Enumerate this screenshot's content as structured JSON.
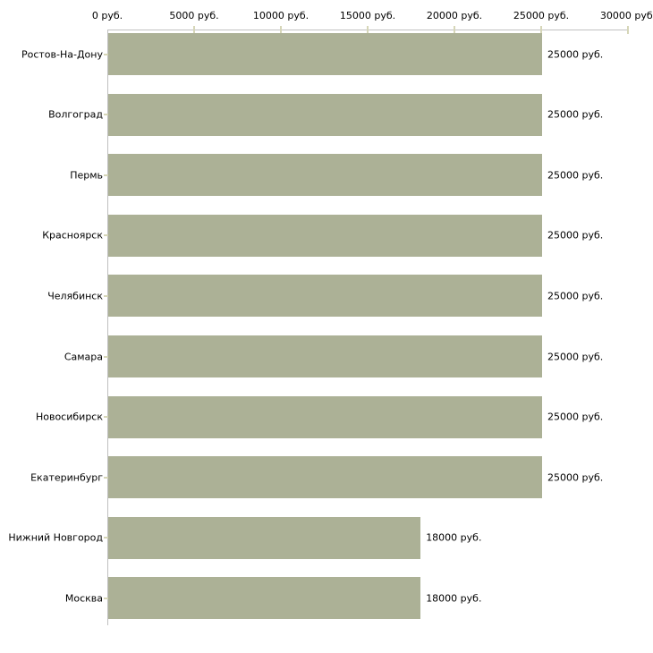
{
  "chart_data": {
    "type": "bar",
    "orientation": "horizontal",
    "title": "",
    "xlabel": "",
    "ylabel": "",
    "categories": [
      "Ростов-На-Дону",
      "Волгоград",
      "Пермь",
      "Красноярск",
      "Челябинск",
      "Самара",
      "Новосибирск",
      "Екатеринбург",
      "Нижний Новгород",
      "Москва"
    ],
    "values": [
      25000,
      25000,
      25000,
      25000,
      25000,
      25000,
      25000,
      25000,
      18000,
      18000
    ],
    "value_labels": [
      "25000 руб.",
      "25000 руб.",
      "25000 руб.",
      "25000 руб.",
      "25000 руб.",
      "25000 руб.",
      "25000 руб.",
      "25000 руб.",
      "18000 руб.",
      "18000 руб."
    ],
    "x_axis": {
      "position": "top",
      "ticks": [
        0,
        5000,
        10000,
        15000,
        20000,
        25000,
        30000
      ],
      "tick_labels": [
        "0 руб.",
        "5000 руб.",
        "10000 руб.",
        "15000 руб.",
        "20000 руб.",
        "25000 руб.",
        "30000 руб."
      ],
      "xlim": [
        0,
        30000
      ]
    },
    "grid": false,
    "legend": false,
    "colors": {
      "bar_fill": "#acb196",
      "axis_line": "#c0c0c0",
      "tick_mark": "#d6d6b8",
      "text": "#000000",
      "background": "#ffffff"
    }
  }
}
